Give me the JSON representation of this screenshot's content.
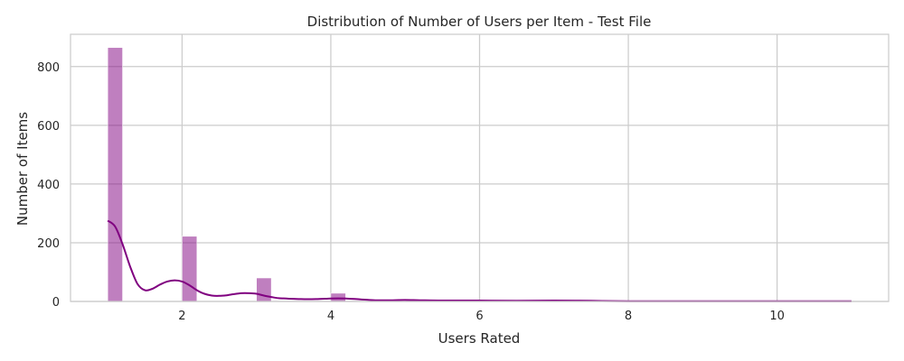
{
  "chart_data": {
    "type": "bar",
    "title": "Distribution of Number of Users per Item - Test File",
    "xlabel": "Users Rated",
    "ylabel": "Number of Items",
    "xlim": [
      0.5,
      11.5
    ],
    "ylim": [
      0,
      910
    ],
    "xticks": [
      2,
      4,
      6,
      8,
      10
    ],
    "yticks": [
      0,
      200,
      400,
      600,
      800
    ],
    "grid": true,
    "bar_color": "#800080",
    "kde_color": "#800080",
    "bins": [
      {
        "x0": 1.0,
        "x1": 1.2,
        "count": 865
      },
      {
        "x0": 2.0,
        "x1": 2.2,
        "count": 222
      },
      {
        "x0": 3.0,
        "x1": 3.2,
        "count": 80
      },
      {
        "x0": 4.0,
        "x1": 4.2,
        "count": 28
      },
      {
        "x0": 5.0,
        "x1": 5.2,
        "count": 6
      },
      {
        "x0": 6.0,
        "x1": 6.2,
        "count": 4
      },
      {
        "x0": 7.0,
        "x1": 7.2,
        "count": 3
      },
      {
        "x0": 8.0,
        "x1": 8.2,
        "count": 1
      },
      {
        "x0": 9.0,
        "x1": 9.2,
        "count": 1
      },
      {
        "x0": 10.0,
        "x1": 10.2,
        "count": 1
      },
      {
        "x0": 10.8,
        "x1": 11.0,
        "count": 1
      }
    ],
    "kde": {
      "x": [
        1.0,
        1.1,
        1.2,
        1.3,
        1.4,
        1.5,
        1.6,
        1.7,
        1.8,
        1.9,
        2.0,
        2.1,
        2.2,
        2.3,
        2.4,
        2.5,
        2.6,
        2.7,
        2.8,
        2.9,
        3.0,
        3.1,
        3.2,
        3.3,
        3.4,
        3.5,
        3.6,
        3.8,
        4.0,
        4.2,
        4.4,
        4.6,
        4.8,
        5.0,
        5.2,
        5.5,
        6.0,
        6.5,
        7.0,
        7.5,
        8.0,
        9.0,
        10.0,
        11.0
      ],
      "y": [
        275,
        255,
        195,
        120,
        60,
        38,
        43,
        57,
        68,
        72,
        68,
        55,
        38,
        26,
        20,
        19,
        21,
        25,
        28,
        28,
        26,
        20,
        15,
        11,
        10,
        9,
        8,
        8,
        10,
        10,
        7,
        4,
        4,
        5,
        4,
        3,
        3,
        2,
        3,
        2,
        1,
        1,
        1,
        1
      ]
    }
  }
}
